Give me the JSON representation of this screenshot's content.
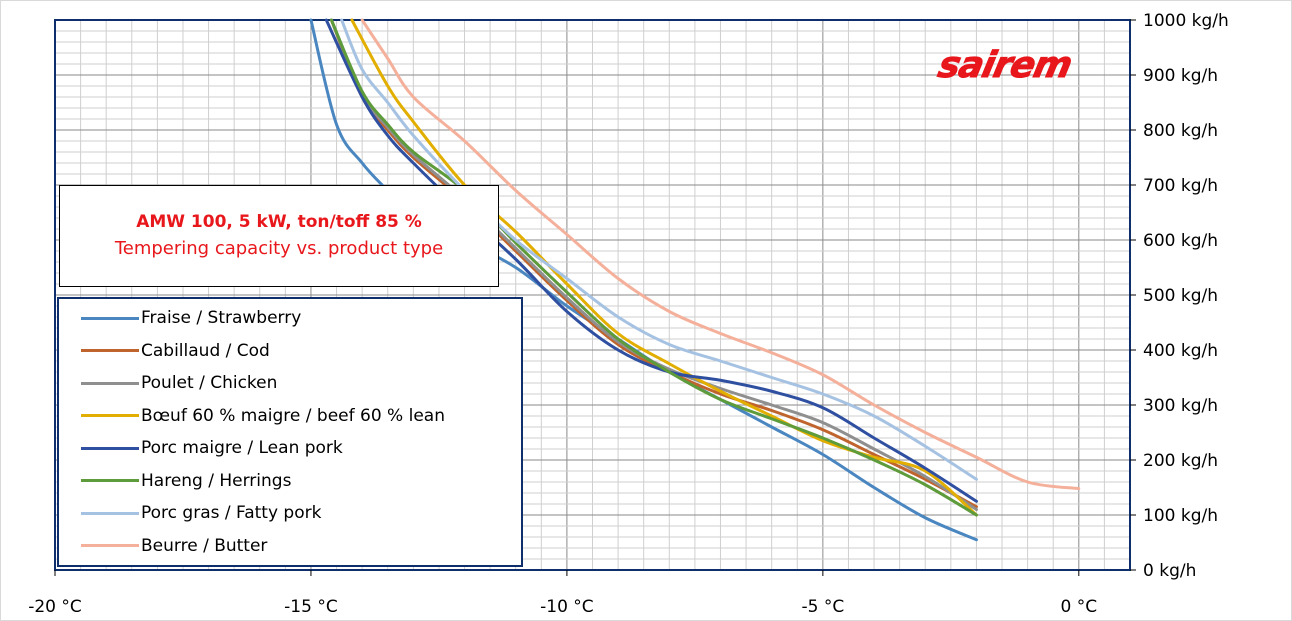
{
  "chart_data": {
    "type": "line",
    "title": "AMW 100, 5 kW, ton/toff 85 %",
    "subtitle": "Tempering capacity vs. product type",
    "xlim": [
      -20,
      1
    ],
    "ylim": [
      0,
      1000
    ],
    "x_ticks": [
      -20,
      -15,
      -10,
      -5,
      0
    ],
    "x_tick_labels": [
      "-20 °C",
      "-15 °C",
      "-10 °C",
      "-5 °C",
      "0 °C"
    ],
    "y_ticks": [
      0,
      100,
      200,
      300,
      400,
      500,
      600,
      700,
      800,
      900,
      1000
    ],
    "y_tick_labels": [
      "0 kg/h",
      "100 kg/h",
      "200 kg/h",
      "300 kg/h",
      "400 kg/h",
      "500 kg/h",
      "600 kg/h",
      "700 kg/h",
      "800 kg/h",
      "900 kg/h",
      "1000 kg/h"
    ],
    "x_minor_step": 0.5,
    "y_minor_step": 20,
    "grid": true,
    "legend_position": "bottom-left",
    "y_axis_side": "right",
    "series": [
      {
        "name": "Fraise / Strawberry",
        "color": "#4a86c0",
        "x": [
          -15.0,
          -14.5,
          -14.0,
          -13.5,
          -13.0,
          -12.0,
          -11.0,
          -10.0,
          -9.0,
          -8.0,
          -7.0,
          -6.0,
          -5.0,
          -4.0,
          -3.0,
          -2.0
        ],
        "y": [
          1000,
          810,
          740,
          690,
          650,
          600,
          550,
          480,
          420,
          360,
          310,
          260,
          210,
          150,
          95,
          55
        ]
      },
      {
        "name": "Cabillaud / Cod",
        "color": "#c0642e",
        "x": [
          -14.6,
          -14.0,
          -13.5,
          -13.0,
          -12.0,
          -11.0,
          -10.0,
          -9.0,
          -8.0,
          -7.0,
          -6.0,
          -5.0,
          -4.0,
          -3.0,
          -2.0
        ],
        "y": [
          1000,
          860,
          800,
          750,
          670,
          580,
          490,
          410,
          360,
          320,
          290,
          255,
          210,
          165,
          115
        ]
      },
      {
        "name": "Poulet / Chicken",
        "color": "#8f8f8f",
        "x": [
          -14.6,
          -14.0,
          -13.5,
          -13.0,
          -12.0,
          -11.0,
          -10.0,
          -9.0,
          -8.0,
          -7.0,
          -6.0,
          -5.0,
          -4.0,
          -3.0,
          -2.0
        ],
        "y": [
          1000,
          865,
          805,
          755,
          675,
          585,
          495,
          415,
          365,
          330,
          300,
          268,
          220,
          170,
          110
        ]
      },
      {
        "name": "Bœuf 60 % maigre / beef 60 % lean",
        "color": "#e2ae00",
        "x": [
          -14.2,
          -13.5,
          -13.0,
          -12.0,
          -11.0,
          -10.0,
          -9.0,
          -8.0,
          -7.0,
          -6.0,
          -5.0,
          -4.0,
          -3.0,
          -2.0
        ],
        "y": [
          1000,
          880,
          815,
          700,
          615,
          520,
          430,
          375,
          325,
          280,
          235,
          205,
          180,
          100
        ]
      },
      {
        "name": "Porc maigre / Lean pork",
        "color": "#2f4fa0",
        "x": [
          -14.7,
          -14.0,
          -13.5,
          -13.0,
          -12.0,
          -11.0,
          -10.0,
          -9.0,
          -8.0,
          -7.0,
          -6.0,
          -5.0,
          -4.0,
          -3.0,
          -2.0
        ],
        "y": [
          1000,
          860,
          790,
          740,
          650,
          565,
          470,
          400,
          360,
          345,
          325,
          295,
          240,
          185,
          125
        ]
      },
      {
        "name": "Hareng / Herrings",
        "color": "#5e9b3a",
        "x": [
          -14.6,
          -14.0,
          -13.5,
          -13.0,
          -12.0,
          -11.0,
          -10.0,
          -9.0,
          -8.0,
          -7.0,
          -6.0,
          -5.0,
          -4.0,
          -3.0,
          -2.0
        ],
        "y": [
          1000,
          870,
          810,
          760,
          690,
          595,
          505,
          420,
          360,
          310,
          275,
          240,
          200,
          155,
          100
        ]
      },
      {
        "name": "Porc gras / Fatty pork",
        "color": "#a6c2e2",
        "x": [
          -14.4,
          -14.0,
          -13.5,
          -13.0,
          -12.0,
          -11.0,
          -10.0,
          -9.0,
          -8.0,
          -7.0,
          -6.0,
          -5.0,
          -4.0,
          -3.0,
          -2.0
        ],
        "y": [
          1000,
          910,
          850,
          790,
          690,
          600,
          530,
          460,
          410,
          380,
          350,
          320,
          280,
          225,
          165
        ]
      },
      {
        "name": "Beurre / Butter",
        "color": "#f4b09a",
        "x": [
          -14.0,
          -13.5,
          -13.0,
          -12.0,
          -11.0,
          -10.0,
          -9.0,
          -8.0,
          -7.0,
          -6.0,
          -5.0,
          -4.0,
          -3.0,
          -2.0,
          -1.0,
          0.0
        ],
        "y": [
          1000,
          930,
          860,
          780,
          690,
          610,
          530,
          470,
          430,
          395,
          355,
          300,
          250,
          205,
          160,
          148
        ]
      }
    ]
  },
  "logo": {
    "text": "sairem",
    "color": "#e8171c"
  }
}
